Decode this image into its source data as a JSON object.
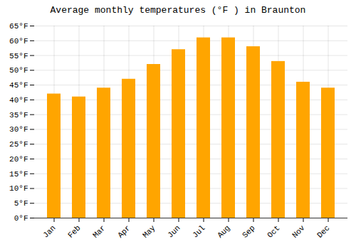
{
  "chart_data": {
    "type": "bar",
    "title": "Average monthly temperatures (°F ) in Braunton",
    "categories": [
      "Jan",
      "Feb",
      "Mar",
      "Apr",
      "May",
      "Jun",
      "Jul",
      "Aug",
      "Sep",
      "Oct",
      "Nov",
      "Dec"
    ],
    "values": [
      42,
      41,
      44,
      47,
      52,
      57,
      61,
      61,
      58,
      53,
      46,
      44
    ],
    "color": "#FFA500",
    "ylim": [
      0,
      65
    ],
    "yticks": [
      {
        "value": 0,
        "label": "0°F"
      },
      {
        "value": 5,
        "label": "5°F"
      },
      {
        "value": 10,
        "label": "10°F"
      },
      {
        "value": 15,
        "label": "15°F"
      },
      {
        "value": 20,
        "label": "20°F"
      },
      {
        "value": 25,
        "label": "25°F"
      },
      {
        "value": 30,
        "label": "30°F"
      },
      {
        "value": 35,
        "label": "35°F"
      },
      {
        "value": 40,
        "label": "40°F"
      },
      {
        "value": 45,
        "label": "45°F"
      },
      {
        "value": 50,
        "label": "50°F"
      },
      {
        "value": 55,
        "label": "55°F"
      },
      {
        "value": 60,
        "label": "60°F"
      },
      {
        "value": 65,
        "label": "65°F"
      }
    ],
    "grid": true
  }
}
